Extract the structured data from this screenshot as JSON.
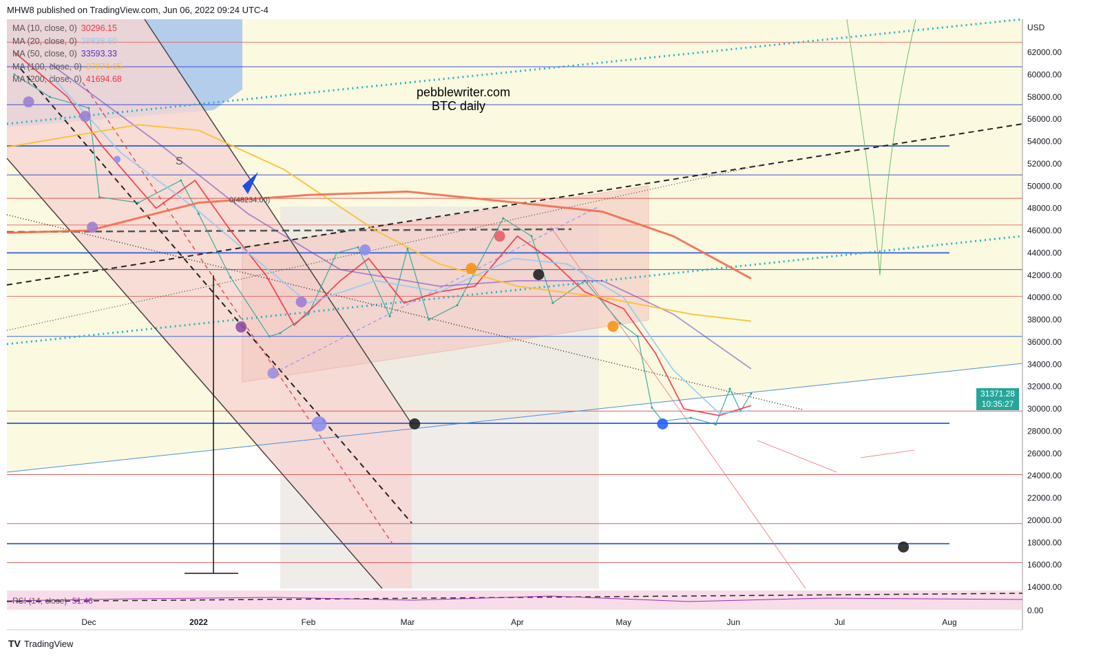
{
  "header": {
    "published": "MHW8 published on TradingView.com, Jun 06, 2022 09:24 UTC-4"
  },
  "legend": [
    {
      "label": "MA (10, close, 0)",
      "value": "30296.15",
      "color": "#f23645"
    },
    {
      "label": "MA (20, close, 0)",
      "value": "29838.60",
      "color": "#90caf9"
    },
    {
      "label": "MA (50, close, 0)",
      "value": "33593.33",
      "color": "#5b2fc4"
    },
    {
      "label": "MA (100, close, 0)",
      "value": "37874.65",
      "color": "#fbc02d"
    },
    {
      "label": "MA (200, close, 0)",
      "value": "41694.68",
      "color": "#f23645"
    }
  ],
  "watermark": {
    "line1": "pebblewriter.com",
    "line2": "BTC daily"
  },
  "annotations": {
    "fib_label": "0(48234.00)",
    "s_label": "S"
  },
  "price_label": {
    "price": "31371.28",
    "countdown": "10:35:27",
    "color": "#26a69a"
  },
  "rsi": {
    "label": "RSI (14, close)",
    "value": "51.46"
  },
  "footer": {
    "brand": "TradingView"
  },
  "chart_data": {
    "type": "line",
    "title": "",
    "currency": "USD",
    "y_axis": {
      "label": "USD",
      "ylim": [
        14000,
        62000
      ],
      "ticks": [
        "14000.00",
        "16000.00",
        "18000.00",
        "20000.00",
        "22000.00",
        "24000.00",
        "26000.00",
        "28000.00",
        "30000.00",
        "32000.00",
        "34000.00",
        "36000.00",
        "38000.00",
        "40000.00",
        "42000.00",
        "44000.00",
        "46000.00",
        "48000.00",
        "50000.00",
        "52000.00",
        "54000.00",
        "56000.00",
        "58000.00",
        "60000.00",
        "62000.00"
      ],
      "rsi_tick": "0.00"
    },
    "x_axis": {
      "ticks": [
        {
          "label": "Dec",
          "date": "2021-12-01",
          "bold": false
        },
        {
          "label": "2022",
          "date": "2022-01-01",
          "bold": true
        },
        {
          "label": "Feb",
          "date": "2022-02-01",
          "bold": false
        },
        {
          "label": "Mar",
          "date": "2022-03-01",
          "bold": false
        },
        {
          "label": "Apr",
          "date": "2022-04-01",
          "bold": false
        },
        {
          "label": "May",
          "date": "2022-05-01",
          "bold": false
        },
        {
          "label": "Jun",
          "date": "2022-06-01",
          "bold": false
        },
        {
          "label": "Jul",
          "date": "2022-07-01",
          "bold": false
        },
        {
          "label": "Aug",
          "date": "2022-08-01",
          "bold": false
        }
      ]
    },
    "series": [
      {
        "name": "BTC",
        "color": "#26a69a",
        "points": [
          [
            "2021-11-10",
            60000
          ],
          [
            "2021-11-20",
            58000
          ],
          [
            "2021-12-01",
            57000
          ],
          [
            "2021-12-04",
            49000
          ],
          [
            "2021-12-15",
            48500
          ],
          [
            "2021-12-27",
            50500
          ],
          [
            "2022-01-01",
            47500
          ],
          [
            "2022-01-10",
            41800
          ],
          [
            "2022-01-21",
            36500
          ],
          [
            "2022-01-24",
            36800
          ],
          [
            "2022-02-01",
            38500
          ],
          [
            "2022-02-09",
            44000
          ],
          [
            "2022-02-15",
            44500
          ],
          [
            "2022-02-24",
            38300
          ],
          [
            "2022-03-01",
            44400
          ],
          [
            "2022-03-07",
            38000
          ],
          [
            "2022-03-15",
            39300
          ],
          [
            "2022-03-28",
            47100
          ],
          [
            "2022-04-05",
            45500
          ],
          [
            "2022-04-11",
            39500
          ],
          [
            "2022-04-20",
            41500
          ],
          [
            "2022-04-30",
            37700
          ],
          [
            "2022-05-05",
            36500
          ],
          [
            "2022-05-09",
            30100
          ],
          [
            "2022-05-12",
            28900
          ],
          [
            "2022-05-20",
            29200
          ],
          [
            "2022-05-27",
            28600
          ],
          [
            "2022-05-31",
            31800
          ],
          [
            "2022-06-03",
            29800
          ],
          [
            "2022-06-06",
            31371
          ]
        ]
      },
      {
        "name": "MA (10, close, 0)",
        "color": "#f23645",
        "points": [
          [
            "2021-11-10",
            62000
          ],
          [
            "2021-11-25",
            58000
          ],
          [
            "2021-12-05",
            53500
          ],
          [
            "2021-12-20",
            48000
          ],
          [
            "2021-12-31",
            50500
          ],
          [
            "2022-01-10",
            46000
          ],
          [
            "2022-01-20",
            42000
          ],
          [
            "2022-01-28",
            37500
          ],
          [
            "2022-02-10",
            41500
          ],
          [
            "2022-02-18",
            43500
          ],
          [
            "2022-02-28",
            39500
          ],
          [
            "2022-03-10",
            40500
          ],
          [
            "2022-03-20",
            41000
          ],
          [
            "2022-04-01",
            45500
          ],
          [
            "2022-04-10",
            43500
          ],
          [
            "2022-04-20",
            40500
          ],
          [
            "2022-05-01",
            39000
          ],
          [
            "2022-05-10",
            35000
          ],
          [
            "2022-05-18",
            30000
          ],
          [
            "2022-05-28",
            29400
          ],
          [
            "2022-06-06",
            30296
          ]
        ]
      },
      {
        "name": "MA (20, close, 0)",
        "color": "#90caf9",
        "points": [
          [
            "2021-11-20",
            60000
          ],
          [
            "2021-12-10",
            53000
          ],
          [
            "2021-12-31",
            48000
          ],
          [
            "2022-01-15",
            44000
          ],
          [
            "2022-02-01",
            39500
          ],
          [
            "2022-02-20",
            41500
          ],
          [
            "2022-03-10",
            40500
          ],
          [
            "2022-03-31",
            43500
          ],
          [
            "2022-04-15",
            43000
          ],
          [
            "2022-05-01",
            40000
          ],
          [
            "2022-05-15",
            33500
          ],
          [
            "2022-05-28",
            29600
          ],
          [
            "2022-06-06",
            29838
          ]
        ]
      },
      {
        "name": "MA (50, close, 0)",
        "color": "#5b2fc4",
        "points": [
          [
            "2021-11-20",
            61000
          ],
          [
            "2021-12-20",
            54000
          ],
          [
            "2022-01-15",
            47500
          ],
          [
            "2022-02-10",
            42500
          ],
          [
            "2022-03-10",
            41000
          ],
          [
            "2022-04-01",
            41500
          ],
          [
            "2022-04-25",
            41500
          ],
          [
            "2022-05-15",
            38500
          ],
          [
            "2022-06-06",
            33593
          ]
        ]
      },
      {
        "name": "MA (100, close, 0)",
        "color": "#fbc02d",
        "points": [
          [
            "2021-11-08",
            53500
          ],
          [
            "2021-12-15",
            55500
          ],
          [
            "2022-01-01",
            55000
          ],
          [
            "2022-01-25",
            51500
          ],
          [
            "2022-02-20",
            46000
          ],
          [
            "2022-03-10",
            43000
          ],
          [
            "2022-04-01",
            41000
          ],
          [
            "2022-04-25",
            40000
          ],
          [
            "2022-05-20",
            38500
          ],
          [
            "2022-06-06",
            37874
          ]
        ]
      },
      {
        "name": "MA (200, close, 0)",
        "color": "#f26c4f",
        "points": [
          [
            "2021-11-08",
            45800
          ],
          [
            "2021-12-01",
            46000
          ],
          [
            "2022-01-01",
            48500
          ],
          [
            "2022-02-01",
            49200
          ],
          [
            "2022-03-01",
            49500
          ],
          [
            "2022-04-01",
            48500
          ],
          [
            "2022-04-25",
            47700
          ],
          [
            "2022-05-15",
            45500
          ],
          [
            "2022-06-06",
            41694
          ]
        ]
      }
    ],
    "markers": [
      {
        "date": "2021-11-14",
        "price": 57550,
        "color": "#9b7fd4",
        "size": "m"
      },
      {
        "date": "2021-11-30",
        "price": 56250,
        "color": "#9b7fd4",
        "size": "m"
      },
      {
        "date": "2021-12-09",
        "price": 52400,
        "color": "#8c8ef0",
        "size": "s"
      },
      {
        "date": "2021-12-02",
        "price": 46300,
        "color": "#9b7fd4",
        "size": "m"
      },
      {
        "date": "2022-01-13",
        "price": 37350,
        "color": "#8e4fa8",
        "size": "m"
      },
      {
        "date": "2022-01-22",
        "price": 33200,
        "color": "#9b8fe0",
        "size": "m"
      },
      {
        "date": "2022-01-30",
        "price": 39600,
        "color": "#9b7fd4",
        "size": "m"
      },
      {
        "date": "2022-02-04",
        "price": 28650,
        "color": "#8c8ef0",
        "size": "l"
      },
      {
        "date": "2022-02-17",
        "price": 44270,
        "color": "#8c8ef0",
        "size": "m"
      },
      {
        "date": "2022-03-03",
        "price": 28650,
        "color": "#222",
        "size": "m"
      },
      {
        "date": "2022-03-19",
        "price": 42600,
        "color": "#f7931a",
        "size": "m"
      },
      {
        "date": "2022-03-27",
        "price": 45500,
        "color": "#e85d6a",
        "size": "m"
      },
      {
        "date": "2022-04-07",
        "price": 42050,
        "color": "#222",
        "size": "m"
      },
      {
        "date": "2022-04-28",
        "price": 37400,
        "color": "#f7931a",
        "size": "m"
      },
      {
        "date": "2022-05-12",
        "price": 28650,
        "color": "#2962ff",
        "size": "m"
      },
      {
        "date": "2022-07-19",
        "price": 17600,
        "color": "#222",
        "size": "m"
      }
    ],
    "horizontal_levels": [
      {
        "price": 60700,
        "color": "#2233cc"
      },
      {
        "price": 57300,
        "color": "#2233cc"
      },
      {
        "price": 53600,
        "color": "#2255dd",
        "thick": true
      },
      {
        "price": 51000,
        "color": "#2233cc"
      },
      {
        "price": 44000,
        "color": "#2255dd",
        "thick": true
      },
      {
        "price": 42500,
        "color": "#2233cc"
      },
      {
        "price": 36500,
        "color": "#2255dd"
      },
      {
        "price": 28700,
        "color": "#2255dd",
        "thick": true
      },
      {
        "price": 17900,
        "color": "#2255dd",
        "thick": true
      },
      {
        "price": 62900,
        "color": "#e06060"
      },
      {
        "price": 48900,
        "color": "#e04040"
      },
      {
        "price": 46500,
        "color": "#e06060"
      },
      {
        "price": 40100,
        "color": "#e06060"
      },
      {
        "price": 29800,
        "color": "#e04040"
      },
      {
        "price": 24100,
        "color": "#e04040"
      },
      {
        "price": 19700,
        "color": "#e04040"
      },
      {
        "price": 16200,
        "color": "#e04040"
      }
    ]
  }
}
